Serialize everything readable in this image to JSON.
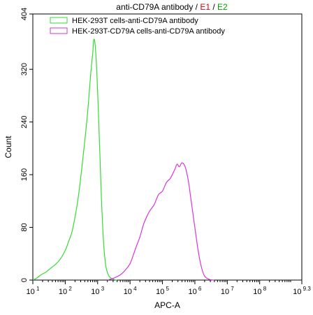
{
  "chart_data": {
    "type": "line",
    "title": {
      "parts": [
        {
          "text": "anti-CD79A antibody / ",
          "color": "#000000"
        },
        {
          "text": "E1",
          "color": "#e60000"
        },
        {
          "text": " / ",
          "color": "#000000"
        },
        {
          "text": "E2",
          "color": "#00a000"
        }
      ]
    },
    "xlabel": "APC-A",
    "ylabel": "Count",
    "x_scale": "log10",
    "xlim": [
      1,
      9.3
    ],
    "ylim": [
      0,
      404
    ],
    "x_ticks": [
      {
        "base": "10",
        "exp": "1",
        "value": 1
      },
      {
        "base": "10",
        "exp": "2",
        "value": 2
      },
      {
        "base": "10",
        "exp": "3",
        "value": 3
      },
      {
        "base": "10",
        "exp": "4",
        "value": 4
      },
      {
        "base": "10",
        "exp": "5",
        "value": 5
      },
      {
        "base": "10",
        "exp": "6",
        "value": 6
      },
      {
        "base": "10",
        "exp": "7",
        "value": 7
      },
      {
        "base": "10",
        "exp": "8",
        "value": 8
      },
      {
        "base": "10",
        "exp": "9.3",
        "value": 9.3
      }
    ],
    "y_ticks": [
      0,
      80,
      160,
      240,
      320,
      404
    ],
    "legend_position": "top-left",
    "series": [
      {
        "name": "HEK-293T cells-anti-CD79A antibody",
        "color": "#33dd33",
        "points": [
          [
            1.0,
            0
          ],
          [
            1.12,
            3
          ],
          [
            1.25,
            8
          ],
          [
            1.4,
            12
          ],
          [
            1.55,
            18
          ],
          [
            1.7,
            24
          ],
          [
            1.85,
            32
          ],
          [
            2.0,
            45
          ],
          [
            2.1,
            58
          ],
          [
            2.2,
            72
          ],
          [
            2.3,
            95
          ],
          [
            2.4,
            125
          ],
          [
            2.5,
            165
          ],
          [
            2.6,
            210
          ],
          [
            2.7,
            260
          ],
          [
            2.78,
            310
          ],
          [
            2.85,
            345
          ],
          [
            2.88,
            365
          ],
          [
            2.92,
            358
          ],
          [
            2.97,
            320
          ],
          [
            3.02,
            260
          ],
          [
            3.07,
            190
          ],
          [
            3.12,
            120
          ],
          [
            3.18,
            60
          ],
          [
            3.25,
            22
          ],
          [
            3.35,
            6
          ],
          [
            3.5,
            1
          ],
          [
            3.6,
            0
          ]
        ]
      },
      {
        "name": "HEK-293T-CD79A cells-anti-CD79A antibody",
        "color": "#dd33dd",
        "points": [
          [
            3.3,
            0
          ],
          [
            3.5,
            3
          ],
          [
            3.7,
            8
          ],
          [
            3.85,
            15
          ],
          [
            4.0,
            25
          ],
          [
            4.1,
            38
          ],
          [
            4.2,
            52
          ],
          [
            4.3,
            65
          ],
          [
            4.42,
            85
          ],
          [
            4.55,
            100
          ],
          [
            4.65,
            108
          ],
          [
            4.75,
            115
          ],
          [
            4.88,
            130
          ],
          [
            5.0,
            135
          ],
          [
            5.12,
            148
          ],
          [
            5.25,
            155
          ],
          [
            5.38,
            168
          ],
          [
            5.45,
            176
          ],
          [
            5.52,
            172
          ],
          [
            5.6,
            178
          ],
          [
            5.7,
            172
          ],
          [
            5.8,
            150
          ],
          [
            5.9,
            115
          ],
          [
            6.0,
            80
          ],
          [
            6.1,
            45
          ],
          [
            6.2,
            20
          ],
          [
            6.3,
            6
          ],
          [
            6.45,
            1
          ],
          [
            6.6,
            0
          ]
        ]
      }
    ]
  }
}
